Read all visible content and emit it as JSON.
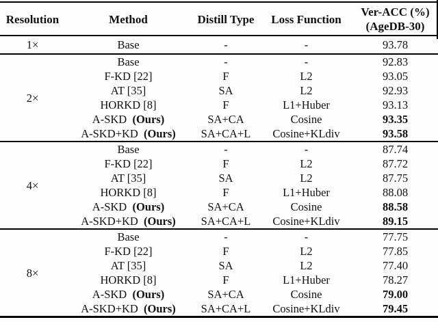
{
  "page": {
    "background": "#fdfdfd",
    "text_color": "#111111",
    "rule_color": "#000000"
  },
  "table": {
    "headers": {
      "resolution": "Resolution",
      "method": "Method",
      "distill_type": "Distill Type",
      "loss_function": "Loss Function",
      "ver_acc_line1": "Ver-ACC (%)",
      "ver_acc_line2": "(AgeDB-30)"
    },
    "sections": [
      {
        "resolution": "1×",
        "rows": [
          {
            "method": "Base",
            "method_bold": "",
            "distill": "-",
            "loss": "-",
            "acc": "93.78",
            "acc_bold": false
          }
        ]
      },
      {
        "resolution": "2×",
        "rows": [
          {
            "method": "Base",
            "method_bold": "",
            "distill": "-",
            "loss": "-",
            "acc": "92.83",
            "acc_bold": false
          },
          {
            "method": "F-KD [22]",
            "method_bold": "",
            "distill": "F",
            "loss": "L2",
            "acc": "93.05",
            "acc_bold": false
          },
          {
            "method": "AT [35]",
            "method_bold": "",
            "distill": "SA",
            "loss": "L2",
            "acc": "92.93",
            "acc_bold": false
          },
          {
            "method": "HORKD [8]",
            "method_bold": "",
            "distill": "F",
            "loss": "L1+Huber",
            "acc": "93.13",
            "acc_bold": false
          },
          {
            "method": "A-SKD",
            "method_bold": "(Ours)",
            "distill": "SA+CA",
            "loss": "Cosine",
            "acc": "93.35",
            "acc_bold": true
          },
          {
            "method": "A-SKD+KD",
            "method_bold": "(Ours)",
            "distill": "SA+CA+L",
            "loss": "Cosine+KLdiv",
            "acc": "93.58",
            "acc_bold": true
          }
        ]
      },
      {
        "resolution": "4×",
        "rows": [
          {
            "method": "Base",
            "method_bold": "",
            "distill": "-",
            "loss": "-",
            "acc": "87.74",
            "acc_bold": false
          },
          {
            "method": "F-KD [22]",
            "method_bold": "",
            "distill": "F",
            "loss": "L2",
            "acc": "87.72",
            "acc_bold": false
          },
          {
            "method": "AT [35]",
            "method_bold": "",
            "distill": "SA",
            "loss": "L2",
            "acc": "87.75",
            "acc_bold": false
          },
          {
            "method": "HORKD [8]",
            "method_bold": "",
            "distill": "F",
            "loss": "L1+Huber",
            "acc": "88.08",
            "acc_bold": false
          },
          {
            "method": "A-SKD",
            "method_bold": "(Ours)",
            "distill": "SA+CA",
            "loss": "Cosine",
            "acc": "88.58",
            "acc_bold": true
          },
          {
            "method": "A-SKD+KD",
            "method_bold": "(Ours)",
            "distill": "SA+CA+L",
            "loss": "Cosine+KLdiv",
            "acc": "89.15",
            "acc_bold": true
          }
        ]
      },
      {
        "resolution": "8×",
        "rows": [
          {
            "method": "Base",
            "method_bold": "",
            "distill": "-",
            "loss": "-",
            "acc": "77.75",
            "acc_bold": false
          },
          {
            "method": "F-KD [22]",
            "method_bold": "",
            "distill": "F",
            "loss": "L2",
            "acc": "77.85",
            "acc_bold": false
          },
          {
            "method": "AT [35]",
            "method_bold": "",
            "distill": "SA",
            "loss": "L2",
            "acc": "77.40",
            "acc_bold": false
          },
          {
            "method": "HORKD [8]",
            "method_bold": "",
            "distill": "F",
            "loss": "L1+Huber",
            "acc": "78.27",
            "acc_bold": false
          },
          {
            "method": "A-SKD",
            "method_bold": "(Ours)",
            "distill": "SA+CA",
            "loss": "Cosine",
            "acc": "79.00",
            "acc_bold": true
          },
          {
            "method": "A-SKD+KD",
            "method_bold": "(Ours)",
            "distill": "SA+CA+L",
            "loss": "Cosine+KLdiv",
            "acc": "79.45",
            "acc_bold": true
          }
        ]
      }
    ]
  }
}
